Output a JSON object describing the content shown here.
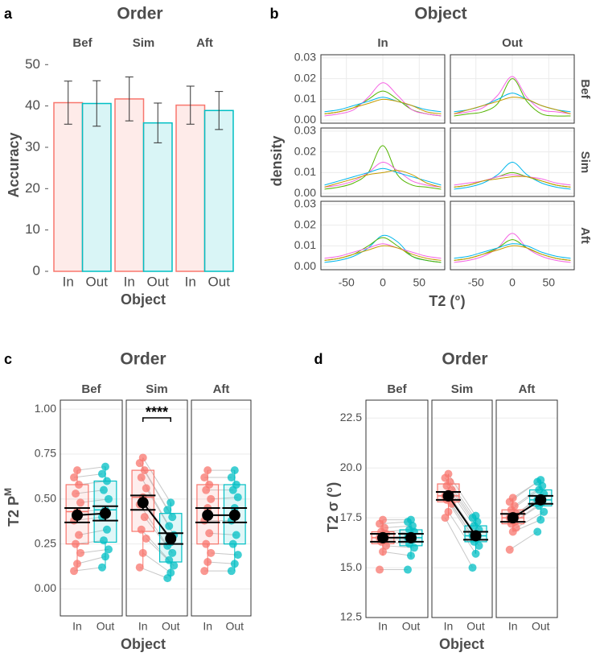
{
  "chart_data": [
    {
      "type": "bar",
      "panel_label": "a",
      "title": "Order",
      "facets": [
        "Bef",
        "Sim",
        "Aft"
      ],
      "categories": [
        "In",
        "Out"
      ],
      "colors": [
        "#f8766d",
        "#00bfc4"
      ],
      "values": [
        [
          40.8,
          40.6
        ],
        [
          41.7,
          35.9
        ],
        [
          40.2,
          38.9
        ]
      ],
      "errors": [
        [
          5.2,
          5.5
        ],
        [
          5.3,
          4.8
        ],
        [
          4.6,
          4.6
        ]
      ],
      "xlabel": "Object",
      "ylabel": "Accuracy",
      "ylim": [
        0,
        52
      ],
      "yticks": [
        0,
        10,
        20,
        30,
        40,
        50
      ]
    },
    {
      "type": "density",
      "panel_label": "b",
      "title": "Object",
      "columns": [
        "In",
        "Out"
      ],
      "rows": [
        "Bef",
        "Sim",
        "Aft"
      ],
      "x": [
        -80,
        -60,
        -40,
        -20,
        0,
        20,
        40,
        60,
        80
      ],
      "curves": [
        [
          [
            {
              "color": "#53b400",
              "values": [
                0.003,
                0.004,
                0.006,
                0.01,
                0.014,
                0.01,
                0.005,
                0.003,
                0.002
              ]
            },
            {
              "color": "#f564e3",
              "values": [
                0.002,
                0.003,
                0.005,
                0.011,
                0.018,
                0.012,
                0.005,
                0.003,
                0.002
              ]
            },
            {
              "color": "#00b6eb",
              "values": [
                0.004,
                0.005,
                0.007,
                0.009,
                0.011,
                0.009,
                0.007,
                0.005,
                0.004
              ]
            },
            {
              "color": "#c49a00",
              "values": [
                0.003,
                0.004,
                0.006,
                0.008,
                0.01,
                0.009,
                0.007,
                0.004,
                0.003
              ]
            }
          ],
          [
            {
              "color": "#53b400",
              "values": [
                0.002,
                0.003,
                0.004,
                0.008,
                0.02,
                0.009,
                0.003,
                0.002,
                0.002
              ]
            },
            {
              "color": "#f564e3",
              "values": [
                0.003,
                0.004,
                0.006,
                0.012,
                0.021,
                0.011,
                0.005,
                0.004,
                0.003
              ]
            },
            {
              "color": "#00b6eb",
              "values": [
                0.004,
                0.005,
                0.007,
                0.01,
                0.013,
                0.01,
                0.007,
                0.005,
                0.004
              ]
            },
            {
              "color": "#c49a00",
              "values": [
                0.003,
                0.005,
                0.007,
                0.009,
                0.011,
                0.01,
                0.007,
                0.005,
                0.003
              ]
            }
          ]
        ],
        [
          [
            {
              "color": "#53b400",
              "values": [
                0.002,
                0.003,
                0.005,
                0.01,
                0.023,
                0.009,
                0.004,
                0.003,
                0.002
              ]
            },
            {
              "color": "#f564e3",
              "values": [
                0.003,
                0.004,
                0.006,
                0.01,
                0.015,
                0.011,
                0.006,
                0.004,
                0.003
              ]
            },
            {
              "color": "#00b6eb",
              "values": [
                0.004,
                0.006,
                0.008,
                0.01,
                0.012,
                0.01,
                0.008,
                0.006,
                0.004
              ]
            },
            {
              "color": "#c49a00",
              "values": [
                0.003,
                0.005,
                0.007,
                0.009,
                0.01,
                0.011,
                0.009,
                0.005,
                0.003
              ]
            }
          ],
          [
            {
              "color": "#00b6eb",
              "values": [
                0.002,
                0.003,
                0.005,
                0.009,
                0.015,
                0.009,
                0.005,
                0.003,
                0.002
              ]
            },
            {
              "color": "#53b400",
              "values": [
                0.003,
                0.004,
                0.006,
                0.008,
                0.01,
                0.008,
                0.006,
                0.004,
                0.003
              ]
            },
            {
              "color": "#f564e3",
              "values": [
                0.004,
                0.005,
                0.006,
                0.008,
                0.009,
                0.008,
                0.007,
                0.005,
                0.004
              ]
            },
            {
              "color": "#c49a00",
              "values": [
                0.003,
                0.004,
                0.006,
                0.007,
                0.008,
                0.008,
                0.006,
                0.004,
                0.003
              ]
            }
          ]
        ],
        [
          [
            {
              "color": "#00b6eb",
              "values": [
                0.002,
                0.003,
                0.005,
                0.009,
                0.015,
                0.012,
                0.005,
                0.003,
                0.002
              ]
            },
            {
              "color": "#53b400",
              "values": [
                0.003,
                0.004,
                0.006,
                0.01,
                0.014,
                0.01,
                0.005,
                0.003,
                0.002
              ]
            },
            {
              "color": "#f564e3",
              "values": [
                0.004,
                0.005,
                0.007,
                0.009,
                0.011,
                0.009,
                0.007,
                0.005,
                0.004
              ]
            },
            {
              "color": "#c49a00",
              "values": [
                0.003,
                0.004,
                0.006,
                0.008,
                0.01,
                0.009,
                0.006,
                0.004,
                0.003
              ]
            }
          ],
          [
            {
              "color": "#f564e3",
              "values": [
                0.002,
                0.003,
                0.005,
                0.009,
                0.016,
                0.009,
                0.005,
                0.003,
                0.002
              ]
            },
            {
              "color": "#53b400",
              "values": [
                0.003,
                0.004,
                0.006,
                0.009,
                0.013,
                0.009,
                0.006,
                0.004,
                0.003
              ]
            },
            {
              "color": "#00b6eb",
              "values": [
                0.004,
                0.005,
                0.007,
                0.009,
                0.011,
                0.01,
                0.007,
                0.005,
                0.004
              ]
            },
            {
              "color": "#c49a00",
              "values": [
                0.003,
                0.004,
                0.006,
                0.008,
                0.01,
                0.009,
                0.006,
                0.004,
                0.003
              ]
            }
          ]
        ]
      ],
      "xlabel": "T2 (°)",
      "ylabel": "density",
      "xlim": [
        -85,
        85
      ],
      "xticks": [
        -50,
        0,
        50
      ],
      "ylim": [
        -0.0015,
        0.0315
      ],
      "yticks": [
        {
          "value": 0,
          "label": "0.00"
        },
        0.01,
        0.02,
        0.03
      ],
      "grid": true
    },
    {
      "type": "box",
      "panel_label": "c",
      "title": "Order",
      "categories": [
        "In",
        "Out"
      ],
      "colors": [
        "#f8766d",
        "#00bfc4"
      ],
      "facets": [
        {
          "name": "Bef",
          "boxes": [
            {
              "q1": 0.25,
              "median": 0.43,
              "q3": 0.58,
              "low": 0.1,
              "high": 0.66,
              "mean": 0.41,
              "error": 0.04
            },
            {
              "q1": 0.26,
              "median": 0.44,
              "q3": 0.6,
              "low": 0.12,
              "high": 0.68,
              "mean": 0.42,
              "error": 0.04
            }
          ],
          "points": [
            [
              0.1,
              0.14,
              0.2,
              0.25,
              0.3,
              0.38,
              0.43,
              0.48,
              0.53,
              0.58,
              0.62,
              0.66
            ],
            [
              0.12,
              0.18,
              0.22,
              0.27,
              0.33,
              0.4,
              0.44,
              0.5,
              0.55,
              0.6,
              0.64,
              0.68
            ]
          ]
        },
        {
          "name": "Sim",
          "annotation": "****",
          "boxes": [
            {
              "q1": 0.32,
              "median": 0.51,
              "q3": 0.66,
              "low": 0.12,
              "high": 0.73,
              "mean": 0.48,
              "error": 0.04
            },
            {
              "q1": 0.15,
              "median": 0.25,
              "q3": 0.42,
              "low": 0.06,
              "high": 0.48,
              "mean": 0.28,
              "error": 0.03
            }
          ],
          "points": [
            [
              0.12,
              0.2,
              0.28,
              0.33,
              0.4,
              0.47,
              0.51,
              0.56,
              0.62,
              0.66,
              0.7,
              0.73
            ],
            [
              0.06,
              0.09,
              0.13,
              0.16,
              0.2,
              0.24,
              0.26,
              0.3,
              0.35,
              0.4,
              0.44,
              0.48
            ]
          ]
        },
        {
          "name": "Aft",
          "boxes": [
            {
              "q1": 0.25,
              "median": 0.45,
              "q3": 0.58,
              "low": 0.1,
              "high": 0.66,
              "mean": 0.41,
              "error": 0.04
            },
            {
              "q1": 0.25,
              "median": 0.45,
              "q3": 0.58,
              "low": 0.1,
              "high": 0.66,
              "mean": 0.41,
              "error": 0.04
            }
          ],
          "points": [
            [
              0.1,
              0.15,
              0.2,
              0.25,
              0.31,
              0.38,
              0.45,
              0.5,
              0.55,
              0.58,
              0.62,
              0.66
            ],
            [
              0.1,
              0.14,
              0.19,
              0.25,
              0.3,
              0.38,
              0.45,
              0.51,
              0.55,
              0.58,
              0.62,
              0.66
            ]
          ]
        }
      ],
      "xlabel": "Object",
      "ylabel": "T2 P",
      "ylabel_superscript": "M",
      "ylim": [
        -0.15,
        1.05
      ],
      "yticks": [
        {
          "value": 0,
          "label": "0.00"
        },
        0.25,
        {
          "value": 0.5,
          "label": "0.50"
        },
        0.75,
        {
          "value": 1,
          "label": "1.00"
        }
      ],
      "grid": true
    },
    {
      "type": "box",
      "panel_label": "d",
      "title": "Order",
      "categories": [
        "In",
        "Out"
      ],
      "colors": [
        "#f8766d",
        "#00bfc4"
      ],
      "facets": [
        {
          "name": "Bef",
          "boxes": [
            {
              "q1": 16.2,
              "median": 16.5,
              "q3": 16.8,
              "low": 15.6,
              "high": 17.4,
              "mean": 16.5,
              "error": 0.2
            },
            {
              "q1": 16.1,
              "median": 16.5,
              "q3": 16.9,
              "low": 15.5,
              "high": 17.4,
              "mean": 16.5,
              "error": 0.2
            }
          ],
          "points": [
            [
              14.9,
              15.8,
              16.1,
              16.3,
              16.4,
              16.5,
              16.5,
              16.7,
              16.8,
              17.0,
              17.2,
              17.4
            ],
            [
              14.9,
              15.6,
              16.0,
              16.2,
              16.4,
              16.5,
              16.6,
              16.8,
              16.9,
              17.1,
              17.3,
              17.4
            ]
          ]
        },
        {
          "name": "Sim",
          "boxes": [
            {
              "q1": 18.3,
              "median": 18.6,
              "q3": 19.2,
              "low": 17.5,
              "high": 19.7,
              "mean": 18.6,
              "error": 0.2
            },
            {
              "q1": 16.3,
              "median": 16.6,
              "q3": 17.1,
              "low": 15.7,
              "high": 17.6,
              "mean": 16.6,
              "error": 0.2
            }
          ],
          "points": [
            [
              17.5,
              17.8,
              18.2,
              18.4,
              18.5,
              18.6,
              18.7,
              18.9,
              19.1,
              19.3,
              19.5,
              19.7
            ],
            [
              15.0,
              15.7,
              16.1,
              16.3,
              16.5,
              16.6,
              16.7,
              16.9,
              17.1,
              17.3,
              17.5,
              17.6
            ]
          ]
        },
        {
          "name": "Aft",
          "boxes": [
            {
              "q1": 17.2,
              "median": 17.5,
              "q3": 17.9,
              "low": 16.8,
              "high": 18.5,
              "mean": 17.5,
              "error": 0.2
            },
            {
              "q1": 18.1,
              "median": 18.4,
              "q3": 18.9,
              "low": 17.4,
              "high": 19.4,
              "mean": 18.4,
              "error": 0.2
            }
          ],
          "points": [
            [
              15.9,
              16.8,
              17.0,
              17.2,
              17.3,
              17.5,
              17.6,
              17.7,
              17.9,
              18.1,
              18.3,
              18.5
            ],
            [
              16.8,
              17.4,
              17.8,
              18.1,
              18.3,
              18.4,
              18.5,
              18.7,
              18.9,
              19.1,
              19.3,
              19.4
            ]
          ]
        }
      ],
      "xlabel": "Object",
      "ylabel": "T2 σ (°)",
      "ylim": [
        12.5,
        23.4
      ],
      "yticks": [
        12.5,
        {
          "value": 15,
          "label": "15.0"
        },
        17.5,
        {
          "value": 20,
          "label": "20.0"
        },
        22.5
      ],
      "grid": true
    }
  ]
}
